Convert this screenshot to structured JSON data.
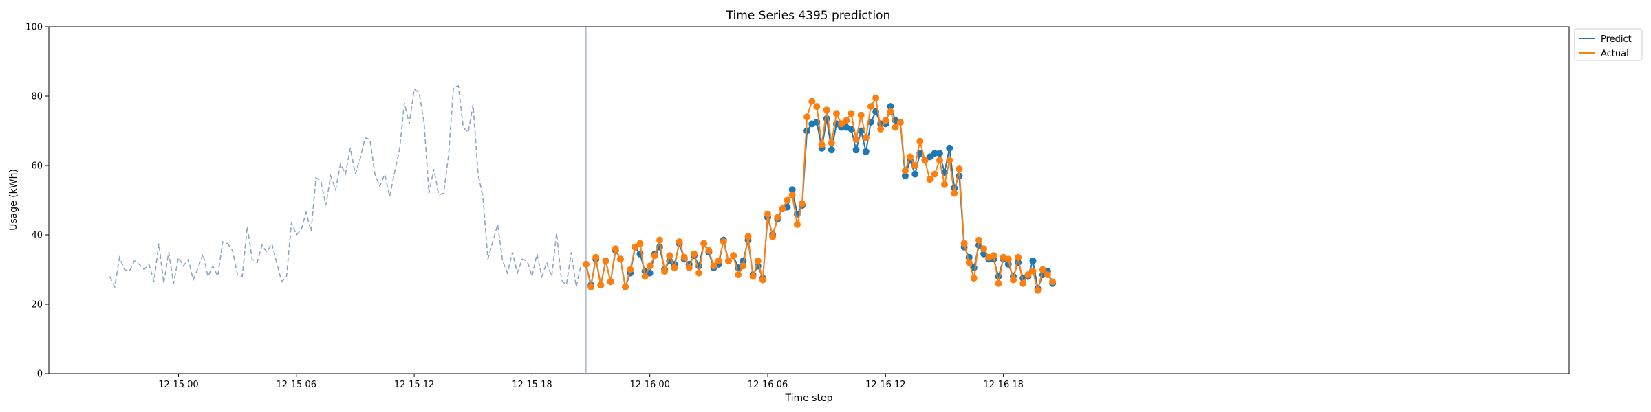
{
  "chart_data": {
    "type": "line",
    "title": "Time Series 4395 prediction",
    "xlabel": "Time step",
    "ylabel": "Usage (kWh)",
    "ylim": [
      0,
      100
    ],
    "y_ticks": [
      0,
      20,
      40,
      60,
      80,
      100
    ],
    "x_unit": "hours after 12-14 00:00",
    "xlim": [
      17.4,
      94.8
    ],
    "x_ticks": [
      {
        "x": 24,
        "label": "12-15 00"
      },
      {
        "x": 30,
        "label": "12-15 06"
      },
      {
        "x": 36,
        "label": "12-15 12"
      },
      {
        "x": 42,
        "label": "12-15 18"
      },
      {
        "x": 48,
        "label": "12-16 00"
      },
      {
        "x": 54,
        "label": "12-16 06"
      },
      {
        "x": 60,
        "label": "12-16 12"
      },
      {
        "x": 66,
        "label": "12-16 18"
      }
    ],
    "x_start": 20.5,
    "x_step": 0.25,
    "forecast_start": 44.75,
    "history": {
      "style": "dashed",
      "color": "#8da4c4",
      "values": [
        28,
        25,
        33.5,
        30,
        29.5,
        32.5,
        31.5,
        30,
        31.5,
        26.5,
        37.5,
        26,
        35,
        26,
        33.5,
        31,
        33,
        27,
        30.5,
        34.5,
        28,
        31,
        28,
        38,
        37.5,
        35.5,
        28.5,
        28,
        42.5,
        33,
        32,
        37,
        35,
        37.5,
        32,
        26.5,
        28,
        43.5,
        40,
        41.5,
        46.5,
        41,
        56.5,
        55.5,
        48.5,
        57,
        53,
        60.5,
        57.5,
        65,
        57.5,
        62,
        68,
        67.5,
        57.5,
        54,
        57.5,
        51,
        58,
        64.5,
        78,
        72,
        82,
        81,
        72.5,
        52,
        59,
        51.5,
        52,
        63,
        82.5,
        83,
        71,
        69.5,
        77.5,
        57.5,
        51,
        33,
        38,
        43,
        32.5,
        29,
        35,
        29,
        33,
        32.5,
        28,
        34.5,
        28,
        32,
        28,
        40.5,
        27,
        25.5,
        35,
        25,
        31.5
      ]
    },
    "series": [
      {
        "name": "Predict",
        "color": "#1f77b4",
        "values": [
          31.5,
          25.5,
          33,
          25.5,
          32.5,
          26.5,
          35.5,
          33,
          25,
          29,
          36.5,
          34.5,
          29.5,
          29,
          34.5,
          36.5,
          30,
          32.5,
          31.5,
          37.5,
          33,
          31.5,
          34,
          31,
          37.5,
          35,
          30.5,
          31.5,
          38.5,
          32.5,
          34,
          30.5,
          32.5,
          38.5,
          28.5,
          31,
          27.5,
          45,
          40,
          44.5,
          47.5,
          48,
          53,
          46,
          48.5,
          70,
          72,
          72.5,
          65,
          73.5,
          64.5,
          72,
          71,
          71,
          70.5,
          64.5,
          70,
          64,
          72.5,
          75.5,
          72,
          72,
          77,
          73,
          72.5,
          57,
          61.5,
          57.5,
          63.5,
          61.5,
          62.5,
          63.5,
          63.5,
          58,
          65,
          53.5,
          57,
          36.5,
          33.5,
          30.5,
          37,
          34.5,
          33,
          33,
          28,
          33,
          31.5,
          28,
          32,
          27.5,
          28,
          32.5,
          24.5,
          28.5,
          29.5,
          26
        ]
      },
      {
        "name": "Actual",
        "color": "#ff7f0e",
        "values": [
          31.5,
          25,
          33.5,
          25.5,
          32.5,
          26.5,
          36,
          33,
          25,
          30,
          36.5,
          37.5,
          28,
          31,
          34,
          38.5,
          29.5,
          34,
          30.5,
          38,
          33.5,
          30.5,
          34.5,
          29,
          37.5,
          35.5,
          31,
          32.5,
          38,
          32.5,
          34,
          28.5,
          31,
          39.5,
          28,
          32.5,
          27,
          46,
          39.5,
          45,
          47.5,
          50,
          51.5,
          43,
          49,
          74,
          78.5,
          77,
          66,
          76,
          66.5,
          75,
          72,
          73,
          75,
          67.5,
          74.5,
          68,
          77,
          79.5,
          70.5,
          73,
          75.5,
          71,
          72.5,
          58.5,
          62.5,
          60,
          67,
          61.5,
          56,
          57.5,
          61.5,
          54.5,
          61.5,
          52,
          59,
          37.5,
          32,
          27.5,
          38.5,
          36,
          33.5,
          34,
          26,
          33.5,
          33,
          27,
          33.5,
          26,
          28.5,
          29.5,
          24,
          30,
          28.5,
          26.5
        ]
      }
    ],
    "legend_position": "outside-top-right",
    "grid": false
  }
}
